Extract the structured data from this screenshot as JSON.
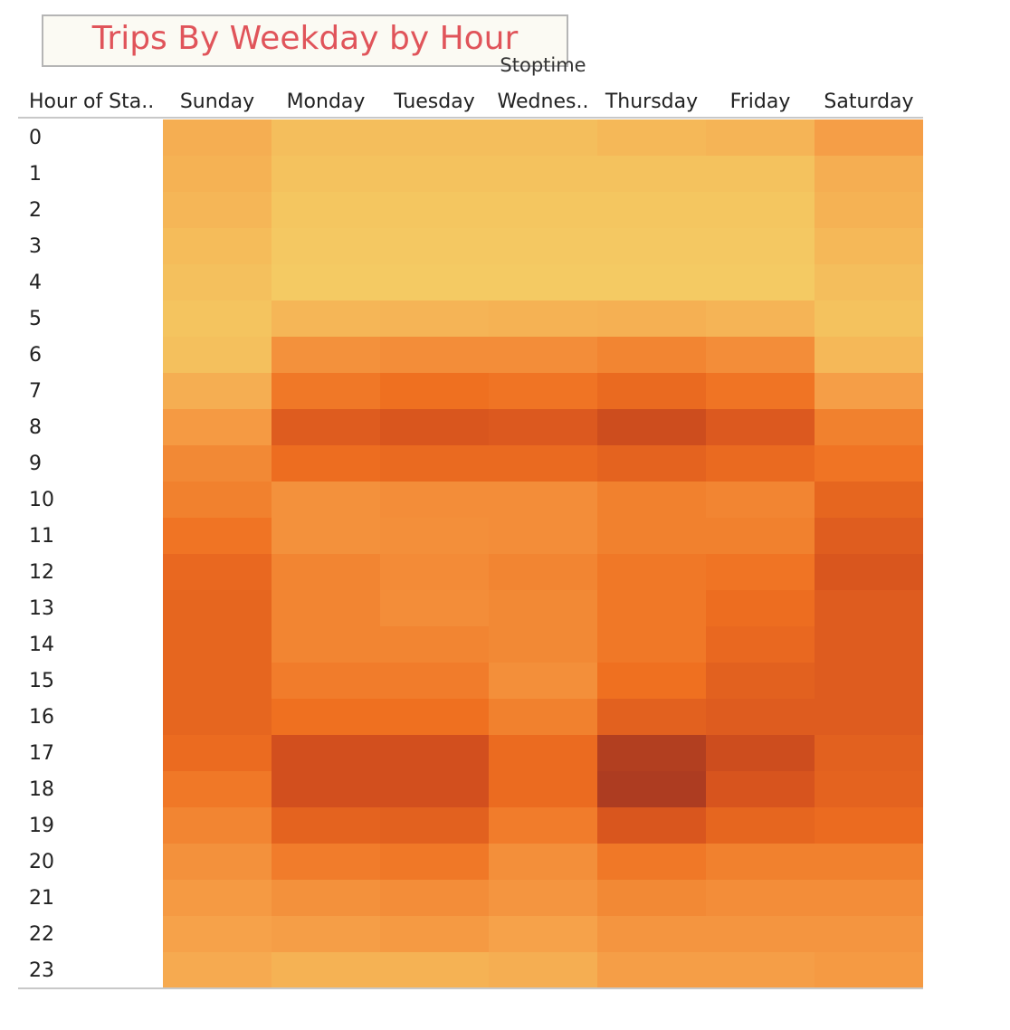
{
  "title": "Trips By Weekday by Hour",
  "column_field": "Stoptime",
  "row_header": "Hour of Sta..",
  "column_labels": [
    "Sunday",
    "Monday",
    "Tuesday",
    "Wednes..",
    "Thursday",
    "Friday",
    "Saturday"
  ],
  "colors": {
    "title": "#e0545a",
    "scale": [
      "#f3d66a",
      "#f6a44c",
      "#ef7020",
      "#d4501e",
      "#9b3322"
    ]
  },
  "chart_data": {
    "type": "heatmap",
    "title": "Trips By Weekday by Hour",
    "x_field": "Stoptime",
    "y_field": "Hour of Sta..",
    "x": [
      "Sunday",
      "Monday",
      "Tuesday",
      "Wednes..",
      "Thursday",
      "Friday",
      "Saturday"
    ],
    "y": [
      "0",
      "1",
      "2",
      "3",
      "4",
      "5",
      "6",
      "7",
      "8",
      "9",
      "10",
      "11",
      "12",
      "13",
      "14",
      "15",
      "16",
      "17",
      "18",
      "19",
      "20",
      "21",
      "22",
      "23"
    ],
    "value_scale": [
      0,
      1
    ],
    "values": [
      [
        0.2,
        0.12,
        0.12,
        0.12,
        0.15,
        0.17,
        0.28
      ],
      [
        0.18,
        0.1,
        0.1,
        0.1,
        0.1,
        0.1,
        0.2
      ],
      [
        0.16,
        0.08,
        0.08,
        0.08,
        0.08,
        0.08,
        0.18
      ],
      [
        0.13,
        0.07,
        0.07,
        0.07,
        0.07,
        0.07,
        0.15
      ],
      [
        0.11,
        0.06,
        0.06,
        0.06,
        0.06,
        0.06,
        0.12
      ],
      [
        0.09,
        0.16,
        0.17,
        0.18,
        0.19,
        0.17,
        0.1
      ],
      [
        0.11,
        0.34,
        0.36,
        0.36,
        0.4,
        0.36,
        0.15
      ],
      [
        0.2,
        0.46,
        0.5,
        0.48,
        0.55,
        0.48,
        0.28
      ],
      [
        0.3,
        0.66,
        0.7,
        0.68,
        0.78,
        0.68,
        0.42
      ],
      [
        0.38,
        0.52,
        0.55,
        0.55,
        0.6,
        0.55,
        0.48
      ],
      [
        0.42,
        0.34,
        0.36,
        0.36,
        0.42,
        0.4,
        0.58
      ],
      [
        0.48,
        0.34,
        0.35,
        0.36,
        0.42,
        0.42,
        0.65
      ],
      [
        0.56,
        0.4,
        0.37,
        0.4,
        0.46,
        0.48,
        0.7
      ],
      [
        0.58,
        0.4,
        0.36,
        0.38,
        0.46,
        0.52,
        0.66
      ],
      [
        0.58,
        0.4,
        0.4,
        0.38,
        0.46,
        0.56,
        0.66
      ],
      [
        0.58,
        0.44,
        0.44,
        0.35,
        0.5,
        0.62,
        0.66
      ],
      [
        0.58,
        0.5,
        0.5,
        0.42,
        0.62,
        0.66,
        0.66
      ],
      [
        0.54,
        0.76,
        0.76,
        0.54,
        0.9,
        0.78,
        0.62
      ],
      [
        0.46,
        0.76,
        0.76,
        0.54,
        0.92,
        0.72,
        0.6
      ],
      [
        0.4,
        0.6,
        0.62,
        0.44,
        0.7,
        0.58,
        0.54
      ],
      [
        0.34,
        0.44,
        0.46,
        0.35,
        0.46,
        0.42,
        0.42
      ],
      [
        0.3,
        0.34,
        0.36,
        0.32,
        0.38,
        0.36,
        0.36
      ],
      [
        0.26,
        0.28,
        0.3,
        0.26,
        0.32,
        0.32,
        0.32
      ],
      [
        0.22,
        0.18,
        0.18,
        0.2,
        0.28,
        0.28,
        0.3
      ]
    ]
  }
}
